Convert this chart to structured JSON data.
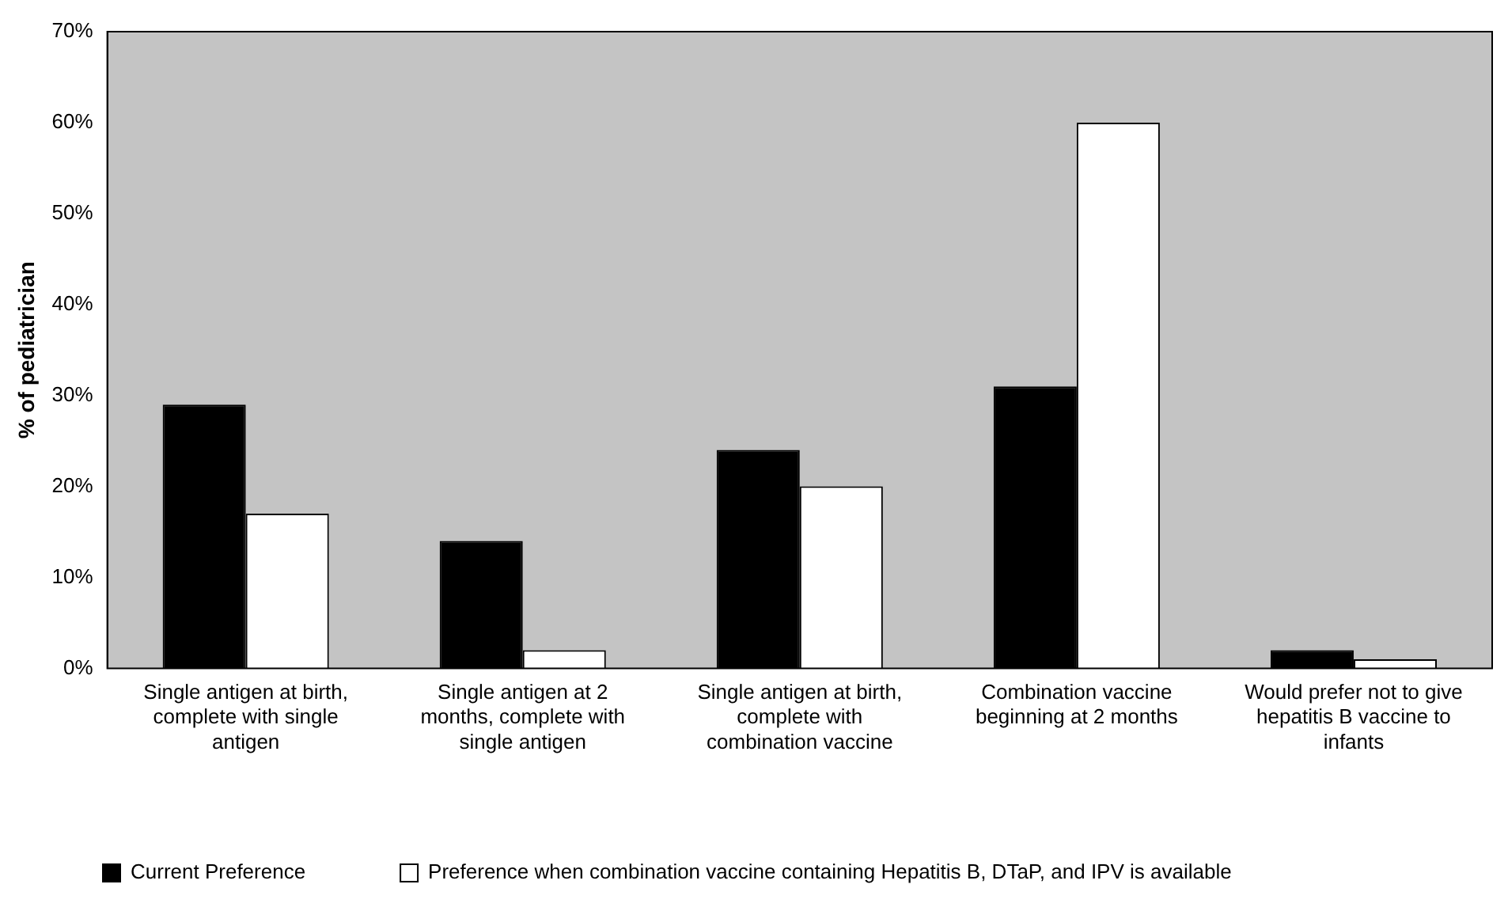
{
  "chart_data": {
    "type": "bar",
    "ylabel": "% of pediatrician",
    "categories": [
      "Single antigen at birth, complete with single antigen",
      "Single antigen at 2 months, complete with single antigen",
      "Single antigen at birth, complete with combination vaccine",
      "Combination vaccine beginning at 2 months",
      "Would prefer not to give hepatitis B vaccine to infants"
    ],
    "series": [
      {
        "name": "Current Preference",
        "color": "#000000",
        "values": [
          29,
          14,
          24,
          31,
          2
        ]
      },
      {
        "name": "Preference when combination vaccine containing Hepatitis B, DTaP, and IPV is available",
        "color": "#ffffff",
        "values": [
          17,
          2,
          20,
          60,
          1
        ]
      }
    ],
    "ylim": [
      0,
      70
    ],
    "yticks": [
      {
        "value": 0,
        "label": "0%"
      },
      {
        "value": 10,
        "label": "10%"
      },
      {
        "value": 20,
        "label": "20%"
      },
      {
        "value": 30,
        "label": "30%"
      },
      {
        "value": 40,
        "label": "40%"
      },
      {
        "value": 50,
        "label": "50%"
      },
      {
        "value": 60,
        "label": "60%"
      },
      {
        "value": 70,
        "label": "70%"
      }
    ],
    "grid": false,
    "legend": "bottom"
  }
}
